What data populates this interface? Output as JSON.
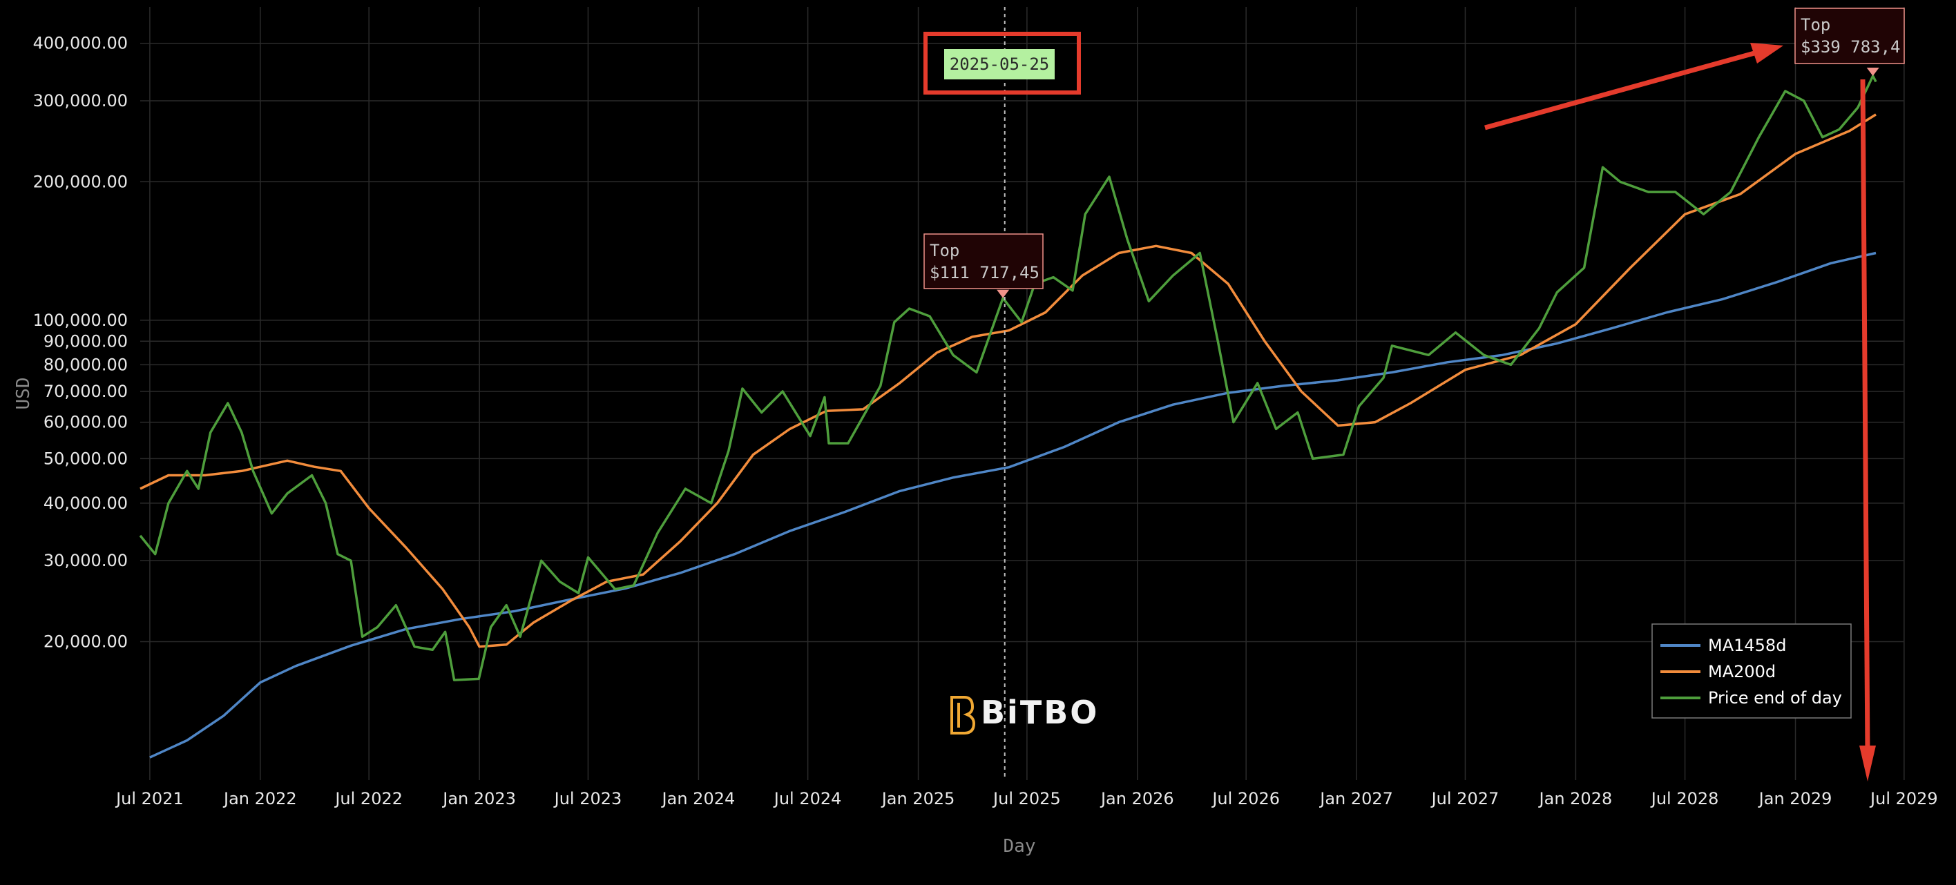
{
  "chart_data": {
    "type": "line",
    "xlabel": "Day",
    "ylabel": "USD",
    "y_scale": "log",
    "ylim": [
      10000,
      480000
    ],
    "xlim": [
      "2021-06-15",
      "2029-06-30"
    ],
    "grid": true,
    "legend_position": "bottom-right",
    "y_ticks": [
      {
        "value": 20000,
        "label": "20,000.00"
      },
      {
        "value": 30000,
        "label": "30,000.00"
      },
      {
        "value": 40000,
        "label": "40,000.00"
      },
      {
        "value": 50000,
        "label": "50,000.00"
      },
      {
        "value": 60000,
        "label": "60,000.00"
      },
      {
        "value": 70000,
        "label": "70,000.00"
      },
      {
        "value": 80000,
        "label": "80,000.00"
      },
      {
        "value": 90000,
        "label": "90,000.00"
      },
      {
        "value": 100000,
        "label": "100,000.00"
      },
      {
        "value": 200000,
        "label": "200,000.00"
      },
      {
        "value": 300000,
        "label": "300,000.00"
      },
      {
        "value": 400000,
        "label": "400,000.00"
      }
    ],
    "x_ticks": [
      {
        "date": "2021-07-01",
        "label": "Jul 2021"
      },
      {
        "date": "2022-01-01",
        "label": "Jan 2022"
      },
      {
        "date": "2022-07-01",
        "label": "Jul 2022"
      },
      {
        "date": "2023-01-01",
        "label": "Jan 2023"
      },
      {
        "date": "2023-07-01",
        "label": "Jul 2023"
      },
      {
        "date": "2024-01-01",
        "label": "Jan 2024"
      },
      {
        "date": "2024-07-01",
        "label": "Jul 2024"
      },
      {
        "date": "2025-01-01",
        "label": "Jan 2025"
      },
      {
        "date": "2025-07-01",
        "label": "Jul 2025"
      },
      {
        "date": "2026-01-01",
        "label": "Jan 2026"
      },
      {
        "date": "2026-07-01",
        "label": "Jul 2026"
      },
      {
        "date": "2027-01-01",
        "label": "Jan 2027"
      },
      {
        "date": "2027-07-01",
        "label": "Jul 2027"
      },
      {
        "date": "2028-01-01",
        "label": "Jan 2028"
      },
      {
        "date": "2028-07-01",
        "label": "Jul 2028"
      },
      {
        "date": "2029-01-01",
        "label": "Jan 2029"
      },
      {
        "date": "2029-07-01",
        "label": "Jul 2029"
      }
    ],
    "series": [
      {
        "name": "MA1458d",
        "color": "#4f86c6",
        "points": [
          [
            "2021-07-01",
            11200
          ],
          [
            "2021-09-01",
            12200
          ],
          [
            "2021-11-01",
            13800
          ],
          [
            "2022-01-01",
            16300
          ],
          [
            "2022-03-01",
            17700
          ],
          [
            "2022-06-01",
            19600
          ],
          [
            "2022-09-01",
            21300
          ],
          [
            "2022-12-01",
            22400
          ],
          [
            "2023-03-01",
            23300
          ],
          [
            "2023-06-01",
            24700
          ],
          [
            "2023-09-01",
            26100
          ],
          [
            "2023-12-01",
            28200
          ],
          [
            "2024-03-01",
            31000
          ],
          [
            "2024-06-01",
            34800
          ],
          [
            "2024-09-01",
            38300
          ],
          [
            "2024-12-01",
            42500
          ],
          [
            "2025-03-01",
            45500
          ],
          [
            "2025-06-01",
            47900
          ],
          [
            "2025-09-01",
            53000
          ],
          [
            "2025-12-01",
            60000
          ],
          [
            "2026-03-01",
            65500
          ],
          [
            "2026-06-01",
            69500
          ],
          [
            "2026-09-01",
            72000
          ],
          [
            "2026-12-01",
            74000
          ],
          [
            "2027-03-01",
            77000
          ],
          [
            "2027-06-01",
            81000
          ],
          [
            "2027-09-01",
            84000
          ],
          [
            "2027-12-01",
            89000
          ],
          [
            "2028-03-01",
            96000
          ],
          [
            "2028-06-01",
            104000
          ],
          [
            "2028-09-01",
            111000
          ],
          [
            "2028-12-01",
            121000
          ],
          [
            "2029-03-01",
            133000
          ],
          [
            "2029-05-15",
            140000
          ]
        ]
      },
      {
        "name": "MA200d",
        "color": "#f28c3c",
        "points": [
          [
            "2021-06-15",
            43000
          ],
          [
            "2021-08-01",
            46000
          ],
          [
            "2021-10-01",
            46000
          ],
          [
            "2021-12-01",
            47000
          ],
          [
            "2022-02-15",
            49500
          ],
          [
            "2022-04-01",
            48000
          ],
          [
            "2022-05-15",
            47000
          ],
          [
            "2022-07-01",
            39000
          ],
          [
            "2022-09-01",
            32000
          ],
          [
            "2022-11-01",
            26000
          ],
          [
            "2022-12-15",
            21500
          ],
          [
            "2023-01-01",
            19500
          ],
          [
            "2023-02-15",
            19700
          ],
          [
            "2023-04-01",
            22000
          ],
          [
            "2023-06-01",
            24500
          ],
          [
            "2023-08-01",
            27000
          ],
          [
            "2023-10-01",
            28000
          ],
          [
            "2023-12-01",
            33000
          ],
          [
            "2024-02-01",
            40000
          ],
          [
            "2024-04-01",
            51000
          ],
          [
            "2024-06-01",
            58000
          ],
          [
            "2024-08-01",
            63500
          ],
          [
            "2024-10-01",
            64000
          ],
          [
            "2024-12-01",
            73000
          ],
          [
            "2025-02-01",
            85000
          ],
          [
            "2025-04-01",
            92000
          ],
          [
            "2025-06-01",
            95000
          ],
          [
            "2025-08-01",
            104000
          ],
          [
            "2025-10-01",
            125000
          ],
          [
            "2025-12-01",
            140000
          ],
          [
            "2026-02-01",
            145000
          ],
          [
            "2026-04-01",
            140000
          ],
          [
            "2026-06-01",
            120000
          ],
          [
            "2026-08-01",
            90000
          ],
          [
            "2026-10-01",
            70000
          ],
          [
            "2026-12-01",
            59000
          ],
          [
            "2027-02-01",
            60000
          ],
          [
            "2027-04-01",
            66000
          ],
          [
            "2027-07-01",
            78000
          ],
          [
            "2027-10-01",
            84000
          ],
          [
            "2028-01-01",
            98000
          ],
          [
            "2028-04-01",
            130000
          ],
          [
            "2028-07-01",
            170000
          ],
          [
            "2028-10-01",
            188000
          ],
          [
            "2029-01-01",
            230000
          ],
          [
            "2029-04-01",
            258000
          ],
          [
            "2029-05-15",
            280000
          ]
        ]
      },
      {
        "name": "Price end of day",
        "color": "#4e9e3c",
        "points": [
          [
            "2021-06-15",
            34000
          ],
          [
            "2021-07-10",
            31000
          ],
          [
            "2021-08-01",
            40000
          ],
          [
            "2021-09-01",
            47000
          ],
          [
            "2021-09-20",
            43000
          ],
          [
            "2021-10-10",
            57000
          ],
          [
            "2021-11-08",
            66000
          ],
          [
            "2021-12-01",
            57000
          ],
          [
            "2021-12-20",
            47000
          ],
          [
            "2022-01-20",
            38000
          ],
          [
            "2022-02-15",
            42000
          ],
          [
            "2022-03-28",
            46000
          ],
          [
            "2022-04-20",
            40000
          ],
          [
            "2022-05-10",
            31000
          ],
          [
            "2022-06-01",
            30000
          ],
          [
            "2022-06-20",
            20500
          ],
          [
            "2022-07-15",
            21500
          ],
          [
            "2022-08-15",
            24000
          ],
          [
            "2022-09-15",
            19500
          ],
          [
            "2022-10-15",
            19200
          ],
          [
            "2022-11-05",
            21000
          ],
          [
            "2022-11-20",
            16500
          ],
          [
            "2022-12-31",
            16600
          ],
          [
            "2023-01-20",
            21500
          ],
          [
            "2023-02-15",
            24000
          ],
          [
            "2023-03-10",
            20500
          ],
          [
            "2023-04-14",
            30000
          ],
          [
            "2023-05-15",
            27000
          ],
          [
            "2023-06-15",
            25500
          ],
          [
            "2023-07-01",
            30500
          ],
          [
            "2023-08-15",
            26000
          ],
          [
            "2023-09-15",
            26500
          ],
          [
            "2023-10-25",
            34500
          ],
          [
            "2023-12-10",
            43000
          ],
          [
            "2024-01-22",
            40000
          ],
          [
            "2024-02-20",
            52000
          ],
          [
            "2024-03-14",
            71000
          ],
          [
            "2024-04-15",
            63000
          ],
          [
            "2024-05-20",
            70000
          ],
          [
            "2024-07-05",
            56000
          ],
          [
            "2024-07-29",
            68000
          ],
          [
            "2024-08-05",
            54000
          ],
          [
            "2024-09-06",
            54000
          ],
          [
            "2024-10-30",
            72000
          ],
          [
            "2024-11-22",
            99000
          ],
          [
            "2024-12-17",
            106000
          ],
          [
            "2025-01-20",
            102000
          ],
          [
            "2025-02-28",
            84000
          ],
          [
            "2025-04-08",
            77000
          ],
          [
            "2025-05-22",
            111700
          ],
          [
            "2025-06-22",
            99000
          ],
          [
            "2025-07-14",
            120000
          ],
          [
            "2025-08-14",
            124000
          ],
          [
            "2025-09-15",
            116000
          ],
          [
            "2025-10-06",
            170000
          ],
          [
            "2025-11-15",
            205000
          ],
          [
            "2025-12-15",
            150000
          ],
          [
            "2026-01-20",
            110000
          ],
          [
            "2026-03-01",
            125000
          ],
          [
            "2026-04-15",
            140000
          ],
          [
            "2026-05-15",
            90000
          ],
          [
            "2026-06-10",
            60000
          ],
          [
            "2026-07-20",
            73000
          ],
          [
            "2026-08-20",
            58000
          ],
          [
            "2026-09-25",
            63000
          ],
          [
            "2026-10-20",
            50000
          ],
          [
            "2026-12-10",
            51000
          ],
          [
            "2027-01-05",
            65000
          ],
          [
            "2027-02-15",
            75000
          ],
          [
            "2027-03-01",
            88000
          ],
          [
            "2027-05-01",
            84000
          ],
          [
            "2027-06-15",
            94000
          ],
          [
            "2027-08-01",
            84000
          ],
          [
            "2027-09-15",
            80000
          ],
          [
            "2027-11-01",
            96000
          ],
          [
            "2027-12-01",
            115000
          ],
          [
            "2028-01-15",
            130000
          ],
          [
            "2028-02-15",
            215000
          ],
          [
            "2028-03-15",
            200000
          ],
          [
            "2028-05-01",
            190000
          ],
          [
            "2028-06-15",
            190000
          ],
          [
            "2028-08-01",
            170000
          ],
          [
            "2028-09-15",
            190000
          ],
          [
            "2028-11-01",
            250000
          ],
          [
            "2028-12-15",
            315000
          ],
          [
            "2029-01-15",
            300000
          ],
          [
            "2029-02-15",
            250000
          ],
          [
            "2029-03-15",
            260000
          ],
          [
            "2029-04-15",
            290000
          ],
          [
            "2029-05-10",
            339783
          ],
          [
            "2029-05-15",
            330000
          ]
        ]
      }
    ],
    "annotations": [
      {
        "date": "2025-05-22",
        "value": 111717.45,
        "title": "Top",
        "value_label": "$111 717,45"
      },
      {
        "date": "2029-05-10",
        "value": 339783.4,
        "title": "Top",
        "value_label": "$339 783,4"
      }
    ],
    "crosshair": {
      "date": "2025-05-25",
      "label": "2025-05-25"
    }
  },
  "watermark": "BiTBO",
  "overlay_color": "#e53b2c"
}
